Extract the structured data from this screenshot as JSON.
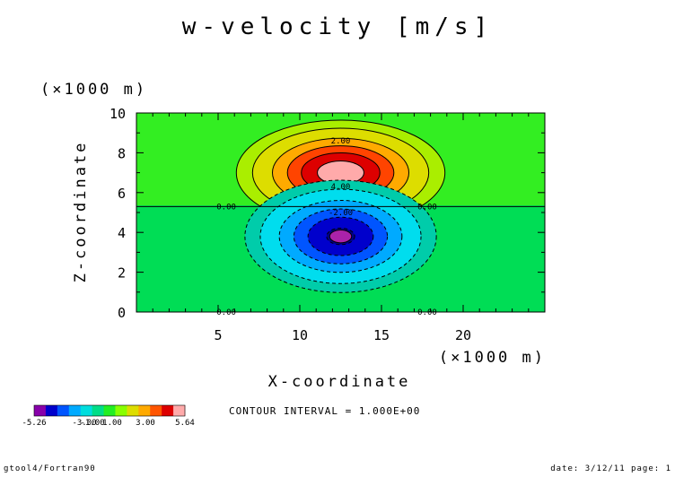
{
  "chart_data": {
    "type": "heatmap",
    "subtype": "filled-contour",
    "title": "w-velocity [m/s]",
    "xlabel": "X-coordinate",
    "ylabel": "Z-coordinate",
    "x_scale_label": "(×1000 m)",
    "y_scale_label": "(×1000 m)",
    "xlim": [
      0,
      25
    ],
    "ylim": [
      0,
      10
    ],
    "x_ticks": [
      5,
      10,
      15,
      20
    ],
    "y_ticks": [
      0,
      2,
      4,
      6,
      8,
      10
    ],
    "x_tick_labels": [
      "5",
      "10",
      "15",
      "20"
    ],
    "y_tick_labels": [
      "0",
      "2",
      "4",
      "6",
      "8",
      "10"
    ],
    "field": {
      "background_value": 0.0,
      "positive_cell": {
        "center_x": 12.5,
        "center_z": 7.0,
        "peak": 5.64,
        "sigma_x": 2.9,
        "sigma_z": 1.2
      },
      "negative_cell": {
        "center_x": 12.5,
        "center_z": 3.8,
        "peak": -5.26,
        "sigma_x": 2.7,
        "sigma_z": 1.3
      }
    },
    "contour_labels": [
      {
        "text": "2.00",
        "x": 12.5,
        "z": 8.6
      },
      {
        "text": "4.00",
        "x": 12.5,
        "z": 6.3
      },
      {
        "text": "0.00",
        "x": 5.5,
        "z": 5.3
      },
      {
        "text": "0.00",
        "x": 17.8,
        "z": 5.3
      },
      {
        "text": "-2.00",
        "x": 12.5,
        "z": 5.0
      },
      {
        "text": "0.00",
        "x": 5.5,
        "z": 0.0
      },
      {
        "text": "0.00",
        "x": 17.8,
        "z": 0.0
      }
    ],
    "colorbar": {
      "min": -5.26,
      "max": 5.64,
      "tick_labels": [
        "-5.26",
        "-3.00",
        "-1.00",
        "1.00",
        "3.00",
        "5.64"
      ],
      "colors": [
        "#8800aa",
        "#0000cc",
        "#0055ff",
        "#00aaff",
        "#00dddd",
        "#00dd88",
        "#22ee22",
        "#88ff00",
        "#dddd00",
        "#ffaa00",
        "#ff5500",
        "#dd0000",
        "#ffaaaa"
      ]
    },
    "contour_interval_text": "CONTOUR INTERVAL = 1.000E+00"
  },
  "footer": {
    "left": "gtool4/Fortran90",
    "right": "date: 3/12/11 page: 1"
  }
}
